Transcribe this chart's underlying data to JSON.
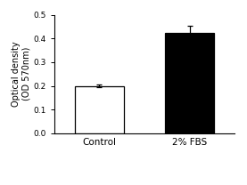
{
  "categories": [
    "Control",
    "2% FBS"
  ],
  "values": [
    0.2,
    0.425
  ],
  "errors": [
    0.005,
    0.028
  ],
  "bar_colors": [
    "white",
    "black"
  ],
  "bar_edgecolors": [
    "black",
    "black"
  ],
  "ylabel": "Optical density\n(OD 570nm)",
  "ylim": [
    0.0,
    0.5
  ],
  "yticks": [
    0.0,
    0.1,
    0.2,
    0.3,
    0.4,
    0.5
  ],
  "ylabel_fontsize": 7.0,
  "tick_fontsize": 6.5,
  "xtick_fontsize": 7.5,
  "bar_width": 0.55,
  "background_color": "#ffffff",
  "ecolor": "black",
  "capsize": 2.5,
  "bar_positions": [
    0.5,
    1.5
  ]
}
